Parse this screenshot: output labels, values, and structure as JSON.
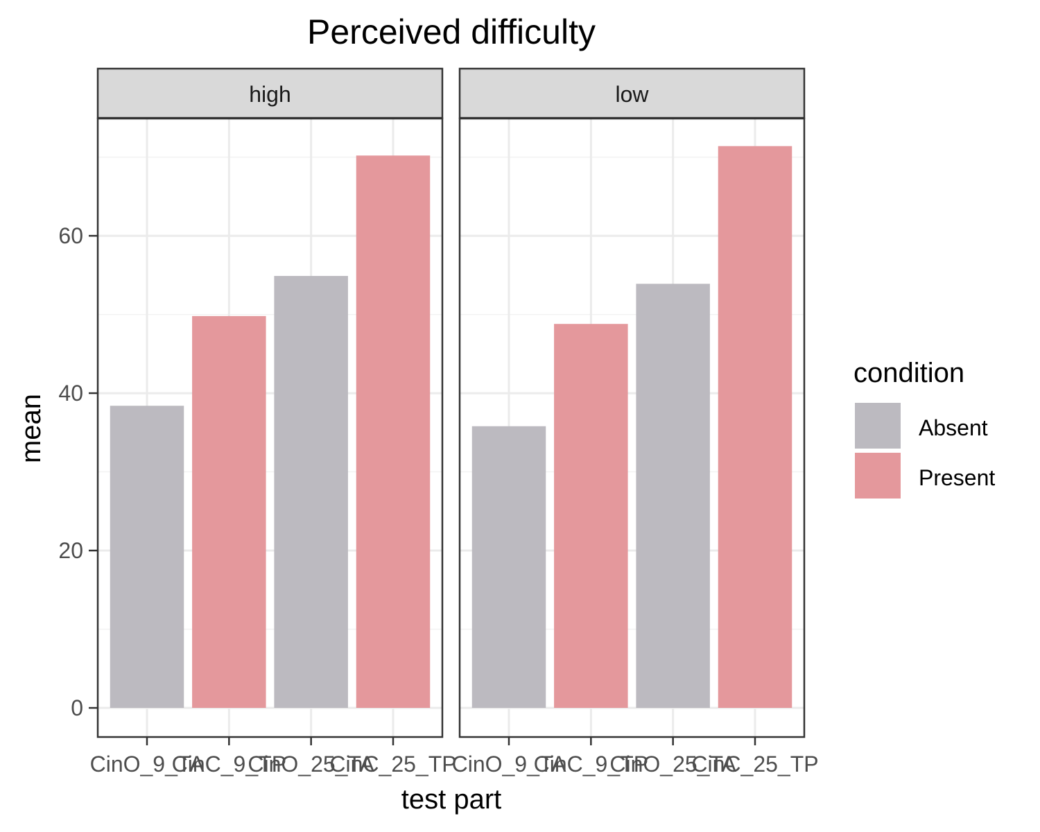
{
  "chart_data": {
    "type": "bar",
    "title": "Perceived difficulty",
    "xlabel": "test part",
    "ylabel": "mean",
    "ylim": [
      -3.7,
      74.9
    ],
    "yticks": [
      0,
      20,
      40,
      60
    ],
    "grid": true,
    "legend_position": "right",
    "categories": [
      "CinO_9_TA",
      "CinC_9_TP",
      "CinO_25_TA",
      "CinC_25_TP"
    ],
    "legend": {
      "title": "condition",
      "entries": [
        {
          "label": "Absent",
          "color": "#BCBAC0"
        },
        {
          "label": "Present",
          "color": "#E4989C"
        }
      ]
    },
    "facets": [
      {
        "label": "high",
        "values": [
          38.4,
          49.8,
          54.9,
          70.2
        ],
        "conditions": [
          "Absent",
          "Present",
          "Absent",
          "Present"
        ]
      },
      {
        "label": "low",
        "values": [
          35.8,
          48.8,
          53.9,
          71.4
        ],
        "conditions": [
          "Absent",
          "Present",
          "Absent",
          "Present"
        ]
      }
    ]
  }
}
